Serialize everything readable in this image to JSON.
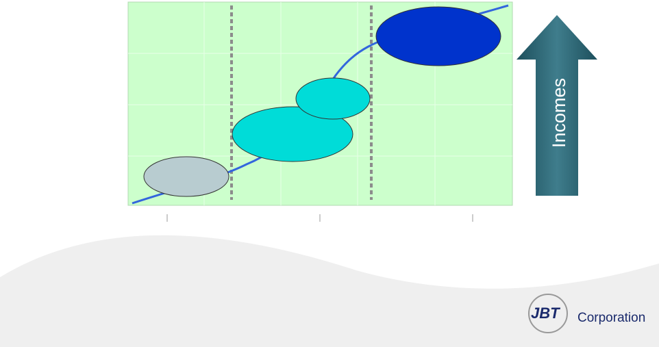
{
  "arrow_label": "Incomes",
  "logo": {
    "mark": "JBT",
    "name": "Corporation"
  }
}
